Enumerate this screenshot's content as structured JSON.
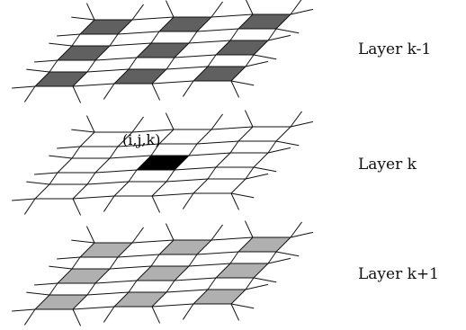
{
  "layers": [
    {
      "label": "Layer k-1",
      "cell_fill": "#606060",
      "highlight": null
    },
    {
      "label": "Layer k",
      "cell_fill": "#ffffff",
      "highlight": {
        "row": 1,
        "col": 1,
        "fill": "#000000",
        "label": "(i,j,k)"
      }
    },
    {
      "label": "Layer k+1",
      "cell_fill": "#b0b0b0",
      "highlight": null
    }
  ],
  "grid": {
    "rows": 3,
    "cols": 3
  },
  "line_color": "#111111"
}
